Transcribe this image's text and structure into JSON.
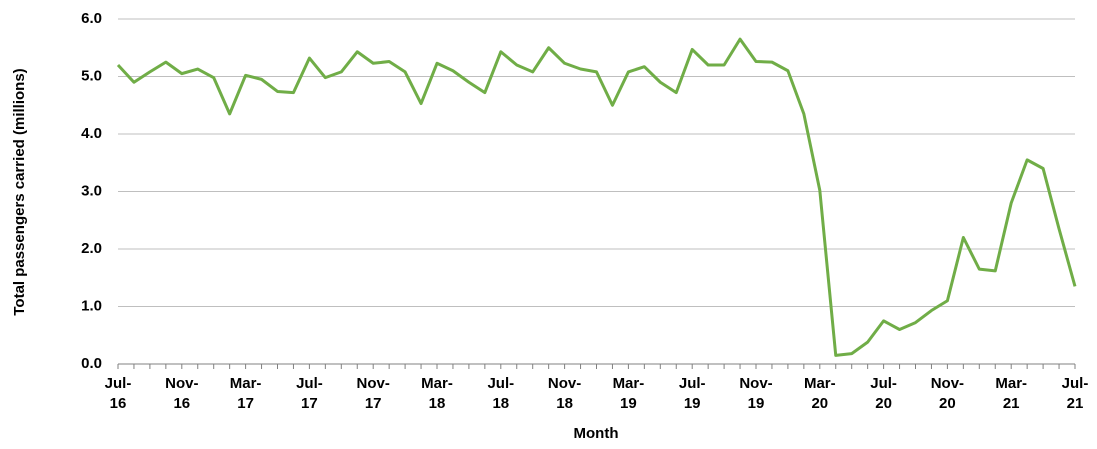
{
  "chart_data": {
    "type": "line",
    "x_label": "Month",
    "y_label": "Total passengers carried (millions)",
    "categories": [
      "Jul-16",
      null,
      null,
      null,
      "Nov-16",
      null,
      null,
      null,
      "Mar-17",
      null,
      null,
      null,
      "Jul-17",
      null,
      null,
      null,
      "Nov-17",
      null,
      null,
      null,
      "Mar-18",
      null,
      null,
      null,
      "Jul-18",
      null,
      null,
      null,
      "Nov-18",
      null,
      null,
      null,
      "Mar-19",
      null,
      null,
      null,
      "Jul-19",
      null,
      null,
      null,
      "Nov-19",
      null,
      null,
      null,
      "Mar-20",
      null,
      null,
      null,
      "Jul-20",
      null,
      null,
      null,
      "Nov-20",
      null,
      null,
      null,
      "Mar-21",
      null,
      null,
      null,
      "Jul-21"
    ],
    "values": [
      5.2,
      4.9,
      5.08,
      5.25,
      5.05,
      5.13,
      4.98,
      4.35,
      5.02,
      4.95,
      4.74,
      4.72,
      5.32,
      4.98,
      5.08,
      5.43,
      5.23,
      5.26,
      5.08,
      4.53,
      5.23,
      5.1,
      4.9,
      4.72,
      5.43,
      5.2,
      5.08,
      5.5,
      5.23,
      5.13,
      5.08,
      4.5,
      5.08,
      5.17,
      4.9,
      4.72,
      5.47,
      5.2,
      5.2,
      5.65,
      5.26,
      5.25,
      5.1,
      4.35,
      3.02,
      0.15,
      0.18,
      0.38,
      0.75,
      0.6,
      0.72,
      0.93,
      1.1,
      2.2,
      1.65,
      1.62,
      2.8,
      3.55,
      3.4,
      2.35,
      1.35
    ],
    "color": "#70ad47",
    "ylim": [
      0,
      6
    ],
    "yticks": [
      {
        "value": 0,
        "label": "0.0"
      },
      {
        "value": 1,
        "label": "1.0"
      },
      {
        "value": 2,
        "label": "2.0"
      },
      {
        "value": 3,
        "label": "3.0"
      },
      {
        "value": 4,
        "label": "4.0"
      },
      {
        "value": 5,
        "label": "5.0"
      },
      {
        "value": 6,
        "label": "6.0"
      }
    ],
    "grid": true
  }
}
